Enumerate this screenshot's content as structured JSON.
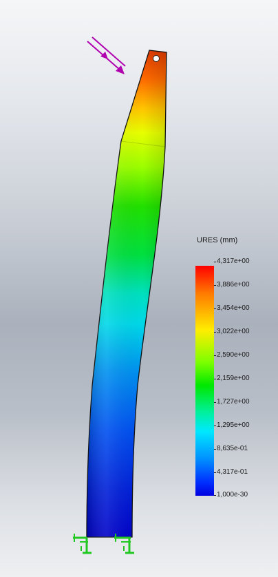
{
  "legend": {
    "title": "URES (mm)",
    "ticks": [
      "4,317e+00",
      "3,886e+00",
      "3,454e+00",
      "3,022e+00",
      "2,590e+00",
      "2,159e+00",
      "1,727e+00",
      "1,295e+00",
      "8,635e-01",
      "4,317e-01",
      "1,000e-30"
    ]
  },
  "colors": {
    "max": "#ff0000",
    "high": "#ffee00",
    "mid": "#00e800",
    "low_mid": "#00e8ff",
    "min": "#0000e0",
    "load_arrow": "#b000b0",
    "fixture": "#22c822"
  },
  "icons": {
    "load": "force-arrow-icon",
    "fixture": "fixed-geometry-icon"
  }
}
